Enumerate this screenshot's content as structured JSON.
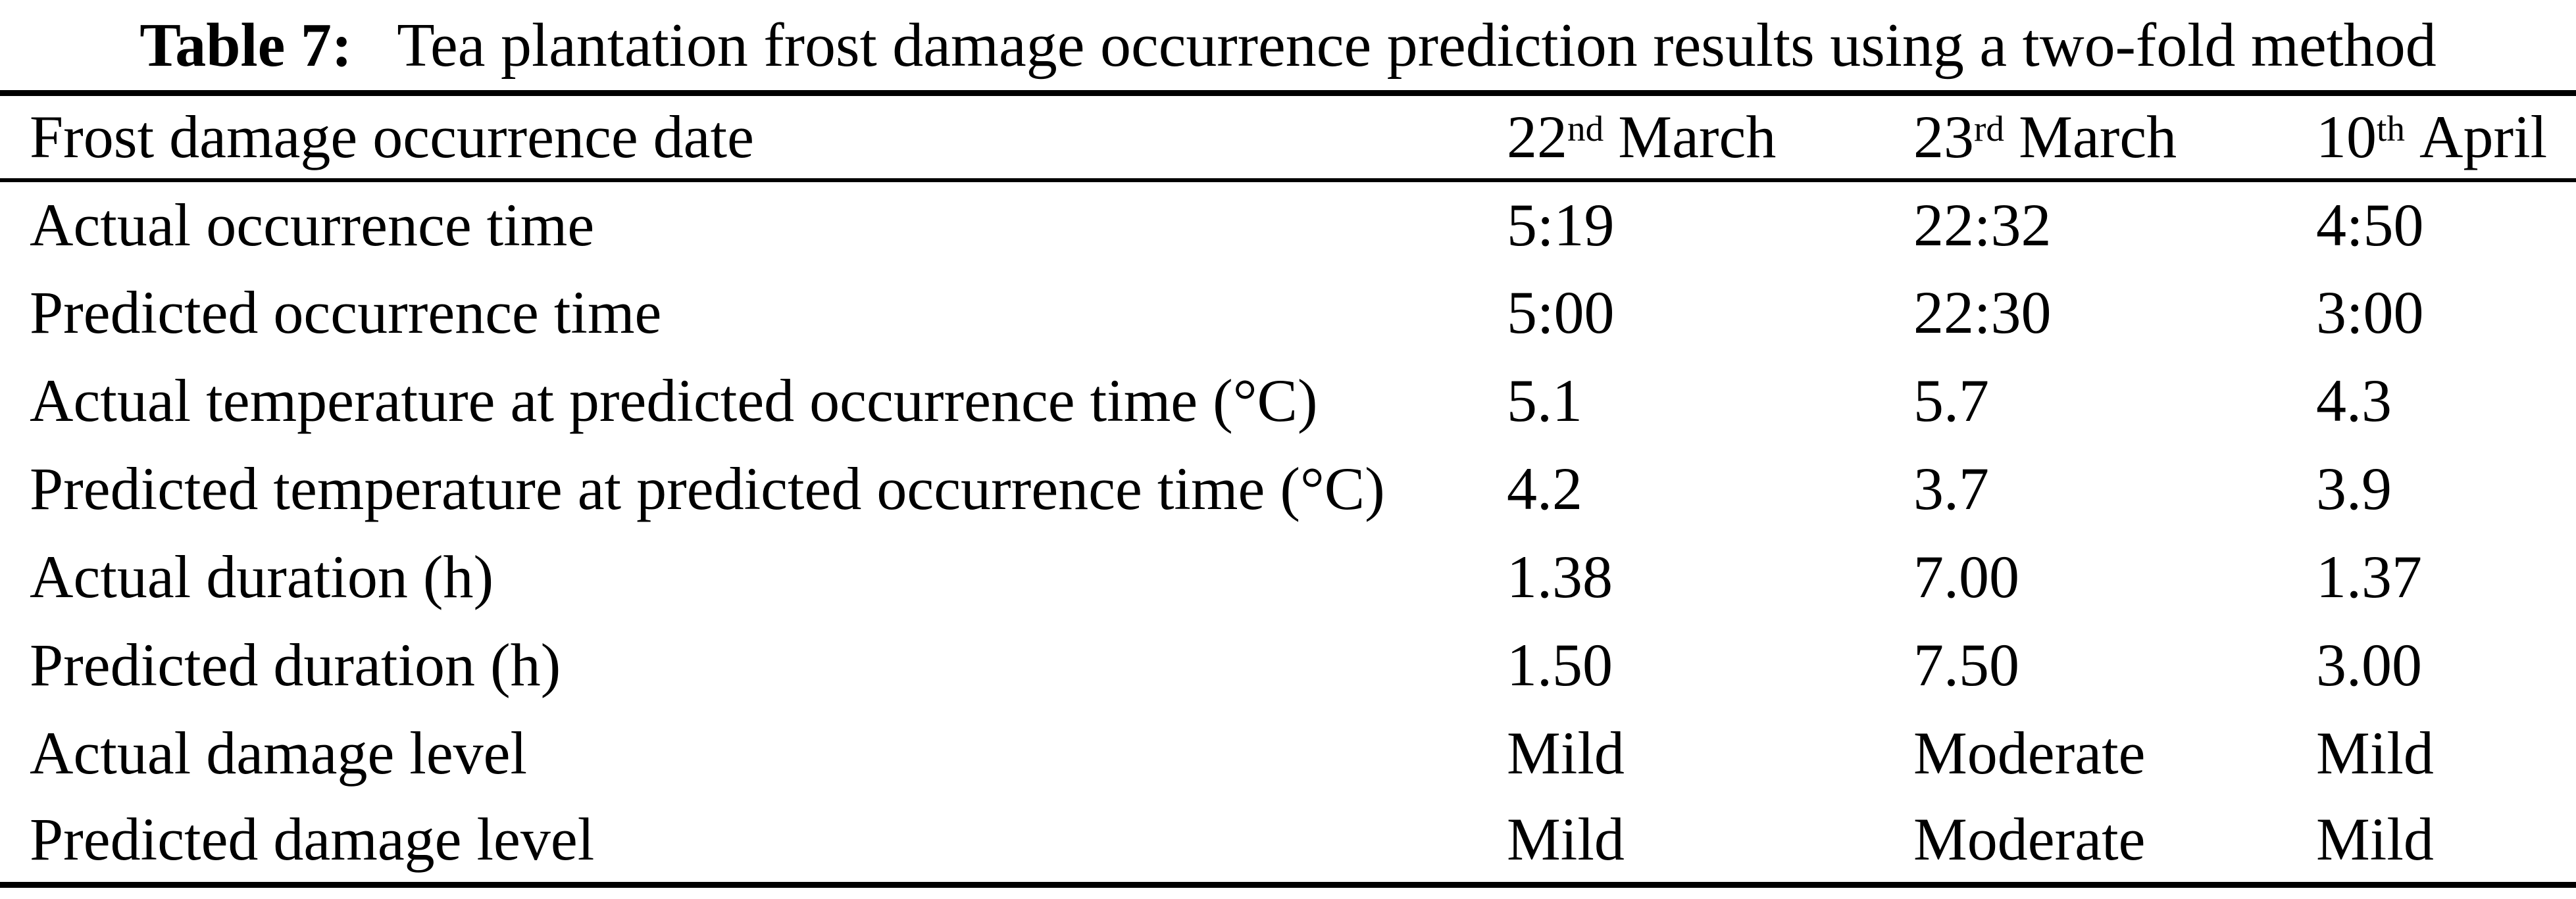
{
  "page": {
    "background_color": "#ffffff",
    "text_color": "#000000"
  },
  "caption": {
    "label": "Table 7:",
    "text": "Tea plantation frost damage occurrence prediction results using a two-fold method"
  },
  "table": {
    "header": {
      "row_label": "Frost damage occurrence date",
      "columns": [
        {
          "day": "22",
          "suffix": "nd",
          "month": "March"
        },
        {
          "day": "23",
          "suffix": "rd",
          "month": "March"
        },
        {
          "day": "10",
          "suffix": "th",
          "month": "April"
        }
      ]
    },
    "rows": [
      {
        "label": "Actual occurrence time",
        "values": [
          "5:19",
          "22:32",
          "4:50"
        ]
      },
      {
        "label": "Predicted occurrence time",
        "values": [
          "5:00",
          "22:30",
          "3:00"
        ]
      },
      {
        "label": "Actual temperature at predicted occurrence time (°C)",
        "values": [
          "5.1",
          "5.7",
          "4.3"
        ]
      },
      {
        "label": "Predicted temperature at predicted occurrence time (°C)",
        "values": [
          "4.2",
          "3.7",
          "3.9"
        ]
      },
      {
        "label": "Actual duration (h)",
        "values": [
          "1.38",
          "7.00",
          "1.37"
        ]
      },
      {
        "label": "Predicted duration (h)",
        "values": [
          "1.50",
          "7.50",
          "3.00"
        ]
      },
      {
        "label": "Actual damage level",
        "values": [
          "Mild",
          "Moderate",
          "Mild"
        ]
      },
      {
        "label": "Predicted damage level",
        "values": [
          "Mild",
          "Moderate",
          "Mild"
        ]
      }
    ]
  }
}
